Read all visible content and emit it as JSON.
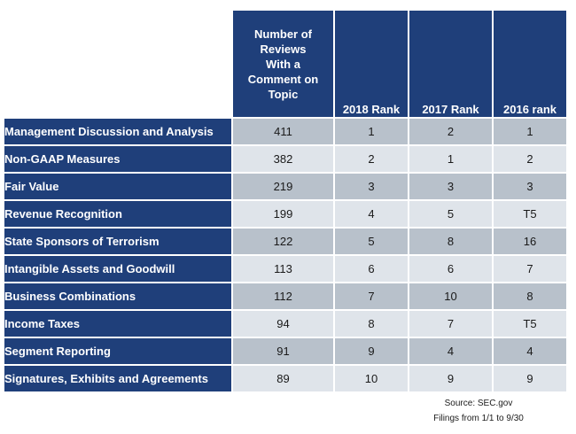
{
  "table": {
    "headers": {
      "topic": "",
      "reviews": "Number of Reviews With a Comment on Topic",
      "rank_2018": "2018 Rank",
      "rank_2017": "2017 Rank",
      "rank_2016": "2016 rank"
    },
    "rows": [
      {
        "topic": "Management Discussion and Analysis",
        "reviews": "411",
        "rank_2018": "1",
        "rank_2017": "2",
        "rank_2016": "1"
      },
      {
        "topic": "Non-GAAP Measures",
        "reviews": "382",
        "rank_2018": "2",
        "rank_2017": "1",
        "rank_2016": "2"
      },
      {
        "topic": "Fair Value",
        "reviews": "219",
        "rank_2018": "3",
        "rank_2017": "3",
        "rank_2016": "3"
      },
      {
        "topic": "Revenue Recognition",
        "reviews": "199",
        "rank_2018": "4",
        "rank_2017": "5",
        "rank_2016": "T5"
      },
      {
        "topic": "State Sponsors of Terrorism",
        "reviews": "122",
        "rank_2018": "5",
        "rank_2017": "8",
        "rank_2016": "16"
      },
      {
        "topic": "Intangible Assets and Goodwill",
        "reviews": "113",
        "rank_2018": "6",
        "rank_2017": "6",
        "rank_2016": "7"
      },
      {
        "topic": "Business Combinations",
        "reviews": "112",
        "rank_2018": "7",
        "rank_2017": "10",
        "rank_2016": "8"
      },
      {
        "topic": "Income Taxes",
        "reviews": "94",
        "rank_2018": "8",
        "rank_2017": "7",
        "rank_2016": "T5"
      },
      {
        "topic": "Segment Reporting",
        "reviews": "91",
        "rank_2018": "9",
        "rank_2017": "4",
        "rank_2016": "4"
      },
      {
        "topic": "Signatures, Exhibits and Agreements",
        "reviews": "89",
        "rank_2018": "10",
        "rank_2017": "9",
        "rank_2016": "9"
      }
    ]
  },
  "footer": {
    "source": "Source: SEC.gov",
    "filings": "Filings from 1/1 to 9/30"
  },
  "colors": {
    "header_bg": "#1f3f7a",
    "row_odd_bg": "#b8c1cb",
    "row_even_bg": "#dfe4ea"
  }
}
